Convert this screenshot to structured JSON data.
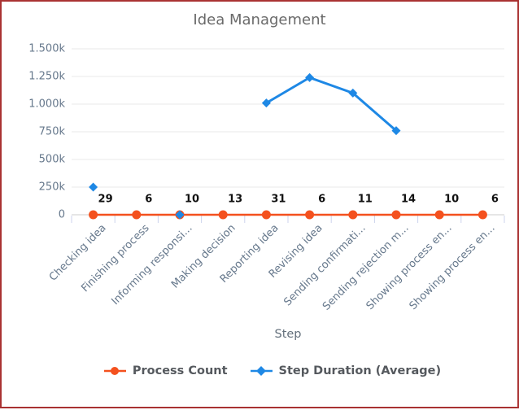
{
  "frame": {
    "border_color": "#a93232",
    "background": "#ffffff"
  },
  "theme": {
    "title_color": "#6a6a6a",
    "axis_label_color": "#66788c",
    "xtitle_color": "#64707c",
    "legend_text_color": "#55595e",
    "data_label_color": "#111111",
    "grid_color": "#e8e8e8",
    "axis_line_color": "#d6d6d6",
    "tick_color": "#ccd3ec"
  },
  "chart_data": {
    "type": "line",
    "title": "Idea Management",
    "xlabel": "Step",
    "ylabel": "",
    "ylim": [
      0,
      1500000
    ],
    "grid": true,
    "legend_position": "bottom",
    "y_ticks": [
      {
        "label": "1.500k",
        "value": 1500000
      },
      {
        "label": "1.250k",
        "value": 1250000
      },
      {
        "label": "1.000k",
        "value": 1000000
      },
      {
        "label": "750k",
        "value": 750000
      },
      {
        "label": "500k",
        "value": 500000
      },
      {
        "label": "250k",
        "value": 250000
      },
      {
        "label": "0",
        "value": 0
      }
    ],
    "categories": [
      "Checking idea",
      "Finishing process",
      "Informing responsi...",
      "Making decision",
      "Reporting idea",
      "Revising idea",
      "Sending confirmati...",
      "Sending rejection m...",
      "Showing process en...",
      "Showing process en..."
    ],
    "series": [
      {
        "name": "Process Count",
        "color": "#f4511e",
        "marker": "circle",
        "data_labels": true,
        "values": [
          29,
          6,
          10,
          13,
          31,
          6,
          11,
          14,
          10,
          6
        ]
      },
      {
        "name": "Step Duration (Average)",
        "color": "#1e88e5",
        "marker": "diamond",
        "data_labels": false,
        "values": [
          250000,
          null,
          0,
          null,
          1010000,
          1240000,
          1100000,
          760000,
          null,
          null
        ]
      }
    ]
  }
}
